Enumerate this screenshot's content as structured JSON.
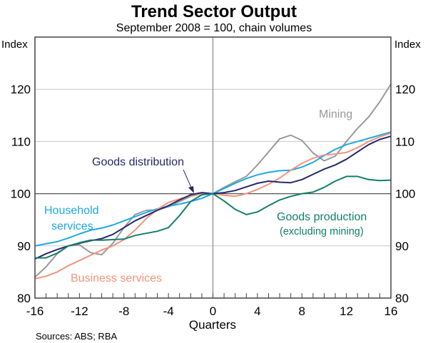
{
  "chart_data": {
    "type": "line",
    "title": "Trend Sector Output",
    "subtitle": "September 2008 = 100, chain volumes",
    "xlabel": "Quarters",
    "ylabel_left": "Index",
    "ylabel_right": "Index",
    "xlim": [
      -16,
      16
    ],
    "ylim": [
      80,
      130
    ],
    "x_ticks": [
      -16,
      -12,
      -8,
      -4,
      0,
      4,
      8,
      12,
      16
    ],
    "y_ticks": [
      80,
      90,
      100,
      110,
      120
    ],
    "grid": true,
    "reference_line_x": 0,
    "reference_line_y": 100,
    "source": "Sources: ABS; RBA",
    "x": [
      -16,
      -15,
      -14,
      -13,
      -12,
      -11,
      -10,
      -9,
      -8,
      -7,
      -6,
      -5,
      -4,
      -3,
      -2,
      -1,
      0,
      1,
      2,
      3,
      4,
      5,
      6,
      7,
      8,
      9,
      10,
      11,
      12,
      13,
      14,
      15,
      16
    ],
    "series": [
      {
        "name": "Mining",
        "label": "Mining",
        "color": "#999999",
        "values": [
          84,
          86,
          88.5,
          90,
          90.2,
          88.7,
          88.3,
          90.5,
          93.5,
          96,
          96.8,
          96.9,
          97.5,
          98.5,
          99.5,
          100,
          100,
          101.2,
          102.3,
          103.3,
          105.5,
          108,
          110.5,
          111.2,
          110.2,
          107.8,
          106.3,
          107.2,
          110,
          112.5,
          114.7,
          117.6,
          121
        ]
      },
      {
        "name": "Household services",
        "label": [
          "Household",
          "services"
        ],
        "color": "#1ea8e6",
        "values": [
          90,
          90.4,
          90.8,
          91.5,
          92.3,
          93,
          93.4,
          94,
          94.8,
          95.6,
          96.4,
          97.1,
          97.6,
          98,
          98.5,
          99.1,
          100,
          101,
          102,
          102.9,
          103.6,
          104.1,
          104.4,
          104.5,
          105.1,
          106,
          107.3,
          108.5,
          109.4,
          110,
          110.6,
          111.2,
          111.8
        ]
      },
      {
        "name": "Business services",
        "label": [
          "Business services"
        ],
        "color": "#f4937a",
        "values": [
          83.7,
          84.2,
          85,
          86.2,
          87.2,
          88.2,
          89.2,
          90,
          91.2,
          93,
          95.2,
          97,
          98.3,
          99,
          99.6,
          100,
          100,
          99.7,
          99.5,
          100,
          100.8,
          101.8,
          103,
          104.5,
          105.8,
          106.8,
          107.4,
          107.6,
          107.9,
          108.8,
          110,
          110.9,
          111.6
        ]
      },
      {
        "name": "Goods distribution",
        "label": [
          "Goods distribution"
        ],
        "color": "#27286a",
        "values": [
          87.5,
          88.5,
          89.3,
          90,
          90.5,
          91,
          91.4,
          92.2,
          93.5,
          94.8,
          95.8,
          96.8,
          97.7,
          98.8,
          99.8,
          100.2,
          100,
          100.2,
          100.6,
          101.3,
          102,
          102.4,
          102.2,
          102.1,
          102.7,
          103.7,
          104.7,
          105.5,
          106.6,
          108,
          109.4,
          110.4,
          111
        ]
      },
      {
        "name": "Goods production (excluding mining)",
        "label": [
          "Goods production",
          "(excluding mining)"
        ],
        "color": "#137f6a",
        "values": [
          87.7,
          87.7,
          88.6,
          90,
          90.6,
          91.1,
          91.1,
          91.2,
          91.3,
          92,
          92.4,
          92.8,
          93.5,
          95.8,
          98.5,
          99.8,
          100,
          98.6,
          97,
          96,
          96.5,
          97.7,
          98.8,
          99.5,
          100,
          100.3,
          101.2,
          102.4,
          103.3,
          103.3,
          102.7,
          102.5,
          102.6
        ]
      }
    ]
  }
}
